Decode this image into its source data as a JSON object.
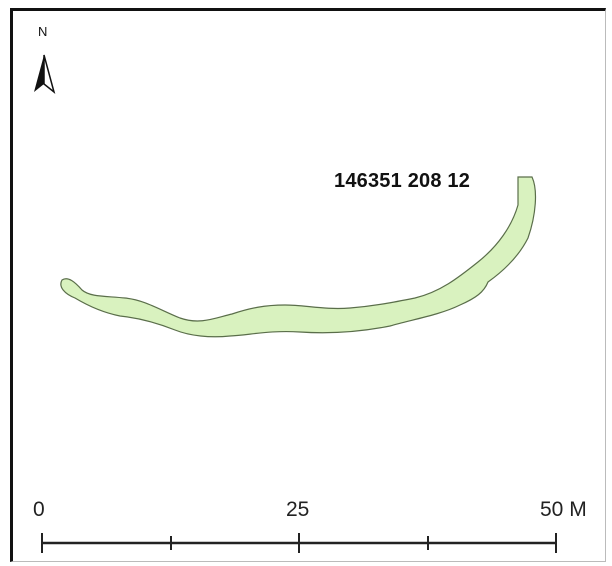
{
  "map": {
    "feature_label": "146351 208 12",
    "feature_fill": "#d9f2bf",
    "feature_stroke": "#5a6e4a",
    "frame_color": "#111111"
  },
  "north_arrow": {
    "letter": "N",
    "icon": "north-arrow-icon"
  },
  "scale_bar": {
    "labels": [
      "0",
      "25",
      "50 M"
    ],
    "unit": "M"
  }
}
